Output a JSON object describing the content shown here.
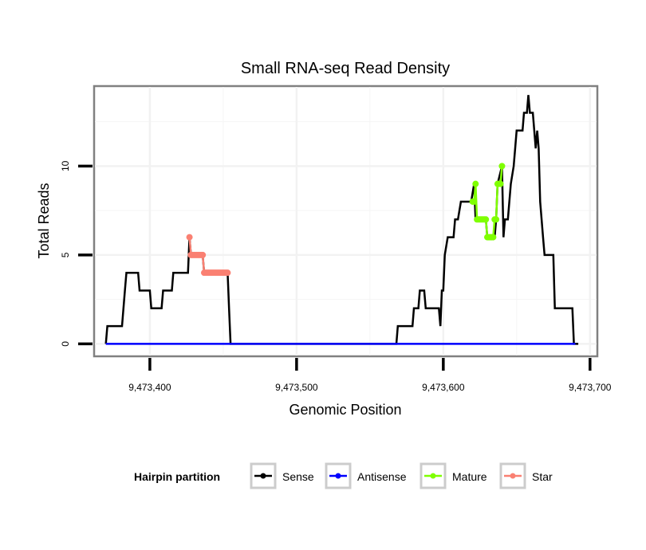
{
  "chart_data": {
    "type": "line",
    "title": "Small RNA-seq Read Density",
    "xlabel": "Genomic Position",
    "ylabel": "Total Reads",
    "xlim": [
      9473362,
      9473705
    ],
    "ylim": [
      -0.7,
      14.5
    ],
    "grid": true,
    "x_ticks": [
      9473400,
      9473500,
      9473600,
      9473700
    ],
    "x_tick_labels": [
      "9,473,400",
      "9,473,500",
      "9,473,600",
      "9,473,700"
    ],
    "y_ticks": [
      0,
      5,
      10
    ],
    "y_tick_labels": [
      "0",
      "5",
      "10"
    ],
    "legend": {
      "title": "Hairpin partition",
      "placement": "bottom",
      "entries": [
        {
          "name": "Sense",
          "color": "#000000"
        },
        {
          "name": "Antisense",
          "color": "#0000ff"
        },
        {
          "name": "Mature",
          "color": "#7fff00"
        },
        {
          "name": "Star",
          "color": "#fa8072"
        }
      ]
    },
    "series": [
      {
        "name": "Sense",
        "color": "#000000",
        "points": [
          [
            9473370,
            0
          ],
          [
            9473371,
            1
          ],
          [
            9473381,
            1
          ],
          [
            9473382,
            2
          ],
          [
            9473383,
            3
          ],
          [
            9473384,
            4
          ],
          [
            9473392,
            4
          ],
          [
            9473393,
            3
          ],
          [
            9473400,
            3
          ],
          [
            9473401,
            2
          ],
          [
            9473408,
            2
          ],
          [
            9473409,
            3
          ],
          [
            9473415,
            3
          ],
          [
            9473416,
            4
          ],
          [
            9473426,
            4
          ],
          [
            9473427,
            6
          ],
          [
            9473428,
            5
          ],
          [
            9473436,
            5
          ],
          [
            9473437,
            4
          ],
          [
            9473453,
            4
          ],
          [
            9473454,
            2
          ],
          [
            9473455,
            0
          ],
          [
            9473568,
            0
          ],
          [
            9473569,
            1
          ],
          [
            9473579,
            1
          ],
          [
            9473580,
            2
          ],
          [
            9473583,
            2
          ],
          [
            9473584,
            3
          ],
          [
            9473587,
            3
          ],
          [
            9473588,
            2
          ],
          [
            9473597,
            2
          ],
          [
            9473598,
            1
          ],
          [
            9473599,
            3
          ],
          [
            9473600,
            3
          ],
          [
            9473601,
            5
          ],
          [
            9473603,
            6
          ],
          [
            9473607,
            6
          ],
          [
            9473608,
            7
          ],
          [
            9473610,
            7
          ],
          [
            9473612,
            8
          ],
          [
            9473619,
            8
          ],
          [
            9473621,
            9
          ],
          [
            9473622,
            7
          ],
          [
            9473629,
            7
          ],
          [
            9473630,
            6
          ],
          [
            9473635,
            6
          ],
          [
            9473636,
            7
          ],
          [
            9473637,
            9
          ],
          [
            9473640,
            10
          ],
          [
            9473641,
            6
          ],
          [
            9473642,
            7
          ],
          [
            9473644,
            7
          ],
          [
            9473646,
            9
          ],
          [
            9473648,
            10
          ],
          [
            9473650,
            12
          ],
          [
            9473654,
            12
          ],
          [
            9473655,
            13
          ],
          [
            9473657,
            13
          ],
          [
            9473658,
            14
          ],
          [
            9473659,
            13
          ],
          [
            9473661,
            13
          ],
          [
            9473662,
            12
          ],
          [
            9473663,
            11
          ],
          [
            9473664,
            12
          ],
          [
            9473665,
            11
          ],
          [
            9473666,
            8
          ],
          [
            9473667,
            7
          ],
          [
            9473668,
            6
          ],
          [
            9473669,
            5
          ],
          [
            9473675,
            5
          ],
          [
            9473676,
            2
          ],
          [
            9473688,
            2
          ],
          [
            9473689,
            0
          ],
          [
            9473692,
            0
          ]
        ]
      },
      {
        "name": "Antisense",
        "color": "#0000ff",
        "points": [
          [
            9473370,
            0
          ],
          [
            9473455,
            0
          ],
          [
            9473568,
            0
          ],
          [
            9473690,
            0
          ]
        ]
      },
      {
        "name": "Mature",
        "color": "#7fff00",
        "points": [
          [
            9473620,
            8
          ],
          [
            9473621,
            8
          ],
          [
            9473622,
            9
          ],
          [
            9473623,
            7
          ],
          [
            9473624,
            7
          ],
          [
            9473625,
            7
          ],
          [
            9473626,
            7
          ],
          [
            9473627,
            7
          ],
          [
            9473628,
            7
          ],
          [
            9473629,
            7
          ],
          [
            9473630,
            6
          ],
          [
            9473631,
            6
          ],
          [
            9473632,
            6
          ],
          [
            9473633,
            6
          ],
          [
            9473634,
            6
          ],
          [
            9473635,
            7
          ],
          [
            9473636,
            7
          ],
          [
            9473637,
            9
          ],
          [
            9473638,
            9
          ],
          [
            9473639,
            9
          ],
          [
            9473640,
            10
          ]
        ]
      },
      {
        "name": "Star",
        "color": "#fa8072",
        "points": [
          [
            9473427,
            6
          ],
          [
            9473428,
            5
          ],
          [
            9473429,
            5
          ],
          [
            9473430,
            5
          ],
          [
            9473431,
            5
          ],
          [
            9473432,
            5
          ],
          [
            9473433,
            5
          ],
          [
            9473434,
            5
          ],
          [
            9473435,
            5
          ],
          [
            9473436,
            5
          ],
          [
            9473437,
            4
          ],
          [
            9473438,
            4
          ],
          [
            9473439,
            4
          ],
          [
            9473440,
            4
          ],
          [
            9473441,
            4
          ],
          [
            9473442,
            4
          ],
          [
            9473443,
            4
          ],
          [
            9473444,
            4
          ],
          [
            9473445,
            4
          ],
          [
            9473446,
            4
          ],
          [
            9473447,
            4
          ],
          [
            9473448,
            4
          ],
          [
            9473449,
            4
          ],
          [
            9473450,
            4
          ],
          [
            9473451,
            4
          ],
          [
            9473452,
            4
          ],
          [
            9473453,
            4
          ]
        ]
      }
    ]
  }
}
